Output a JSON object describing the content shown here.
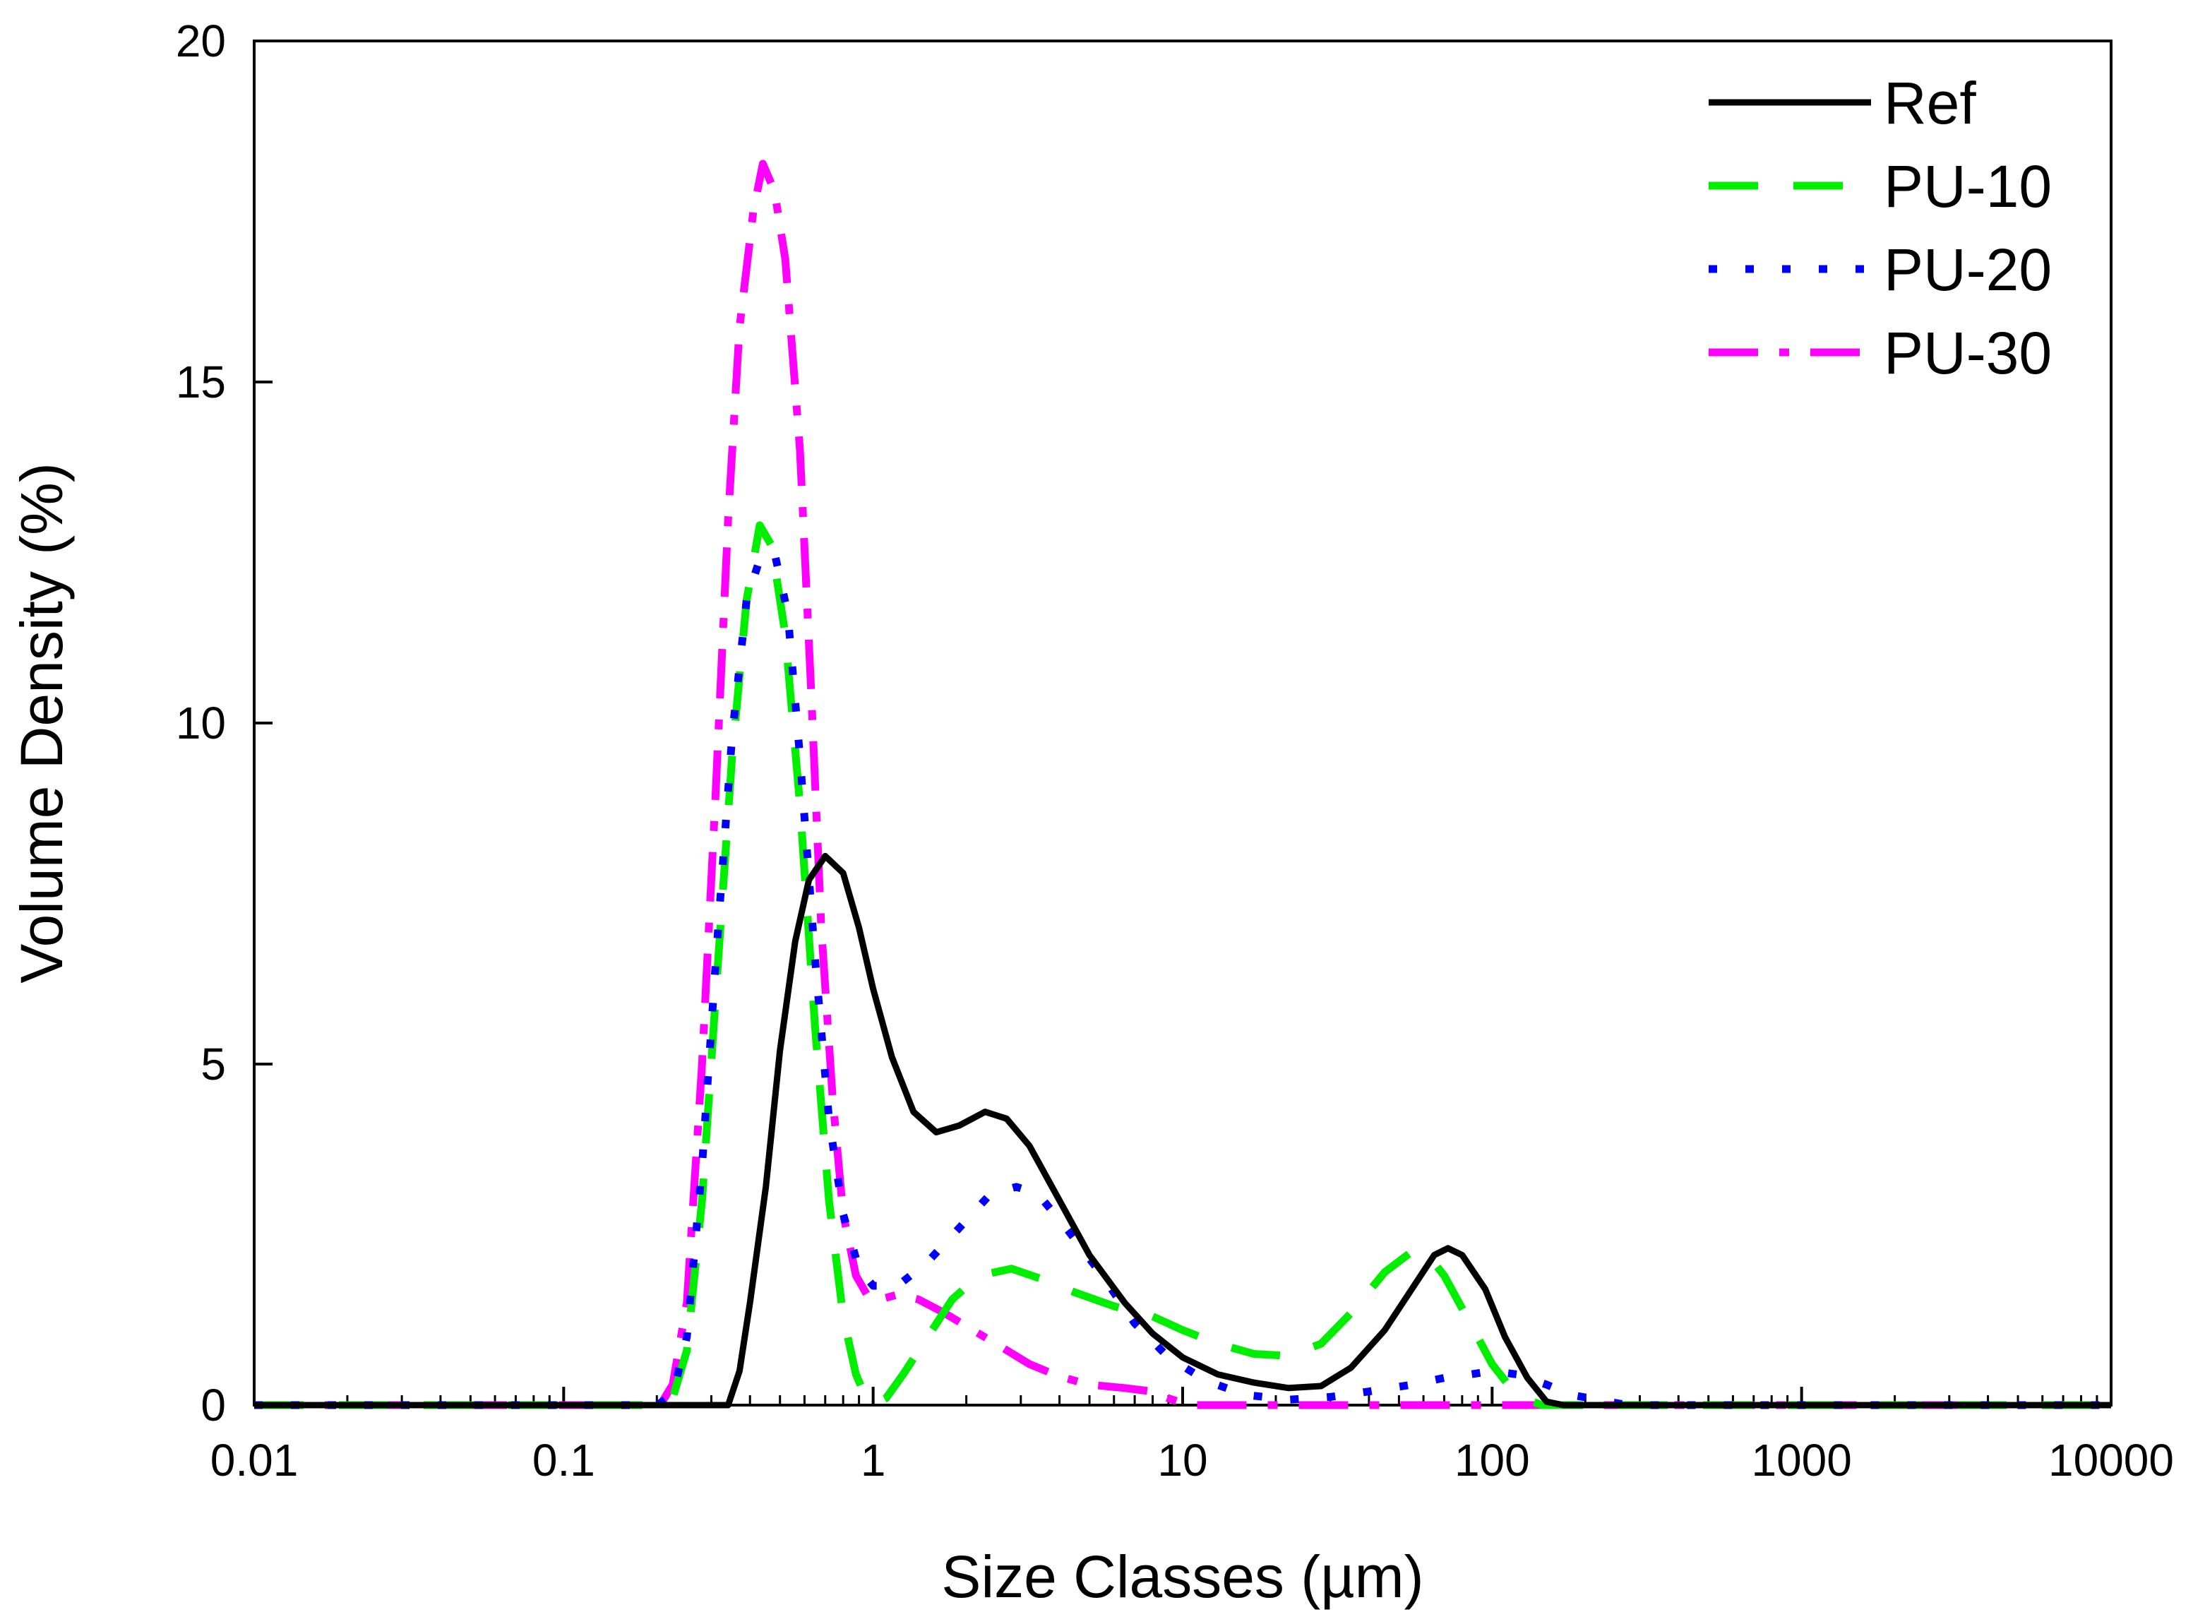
{
  "chart_data": {
    "type": "line",
    "title": "",
    "xlabel": "Size Classes (µm)",
    "ylabel": "Volume Density (%)",
    "xscale": "log",
    "xlim": [
      0.01,
      10000
    ],
    "ylim": [
      0,
      20
    ],
    "x_ticks": [
      {
        "value": 0.01,
        "label": "0.01"
      },
      {
        "value": 0.1,
        "label": "0.1"
      },
      {
        "value": 1,
        "label": "1"
      },
      {
        "value": 10,
        "label": "10"
      },
      {
        "value": 100,
        "label": "100"
      },
      {
        "value": 1000,
        "label": "1000"
      },
      {
        "value": 10000,
        "label": "10000"
      }
    ],
    "y_ticks": [
      {
        "value": 0,
        "label": "0"
      },
      {
        "value": 5,
        "label": "5"
      },
      {
        "value": 10,
        "label": "10"
      },
      {
        "value": 15,
        "label": "15"
      },
      {
        "value": 20,
        "label": "20"
      }
    ],
    "legend_position": "top-right",
    "series": [
      {
        "name": "Ref",
        "color": "#000000",
        "style": "solid",
        "points": [
          [
            0.01,
            0
          ],
          [
            0.2,
            0
          ],
          [
            0.34,
            0
          ],
          [
            0.37,
            0.5
          ],
          [
            0.4,
            1.5
          ],
          [
            0.45,
            3.2
          ],
          [
            0.5,
            5.2
          ],
          [
            0.56,
            6.8
          ],
          [
            0.62,
            7.7
          ],
          [
            0.7,
            8.05
          ],
          [
            0.8,
            7.8
          ],
          [
            0.9,
            7.0
          ],
          [
            1.0,
            6.1
          ],
          [
            1.15,
            5.1
          ],
          [
            1.35,
            4.3
          ],
          [
            1.6,
            4.0
          ],
          [
            1.9,
            4.1
          ],
          [
            2.3,
            4.3
          ],
          [
            2.7,
            4.2
          ],
          [
            3.2,
            3.8
          ],
          [
            4.0,
            3.0
          ],
          [
            5.0,
            2.2
          ],
          [
            6.5,
            1.5
          ],
          [
            8.0,
            1.05
          ],
          [
            10,
            0.7
          ],
          [
            13,
            0.45
          ],
          [
            17,
            0.33
          ],
          [
            22,
            0.25
          ],
          [
            28,
            0.28
          ],
          [
            35,
            0.55
          ],
          [
            45,
            1.1
          ],
          [
            55,
            1.7
          ],
          [
            65,
            2.2
          ],
          [
            72,
            2.3
          ],
          [
            80,
            2.2
          ],
          [
            95,
            1.7
          ],
          [
            110,
            1.0
          ],
          [
            130,
            0.4
          ],
          [
            150,
            0.05
          ],
          [
            170,
            0
          ],
          [
            10000,
            0
          ]
        ]
      },
      {
        "name": "PU-10",
        "color": "#00ee00",
        "style": "dashed",
        "points": [
          [
            0.01,
            0
          ],
          [
            0.2,
            0
          ],
          [
            0.225,
            0.1
          ],
          [
            0.25,
            0.8
          ],
          [
            0.28,
            3.0
          ],
          [
            0.31,
            6.0
          ],
          [
            0.35,
            9.5
          ],
          [
            0.39,
            11.8
          ],
          [
            0.43,
            12.9
          ],
          [
            0.47,
            12.6
          ],
          [
            0.52,
            11.3
          ],
          [
            0.58,
            8.8
          ],
          [
            0.65,
            5.5
          ],
          [
            0.72,
            3.0
          ],
          [
            0.8,
            1.3
          ],
          [
            0.88,
            0.45
          ],
          [
            0.95,
            0.1
          ],
          [
            1.02,
            0.02
          ],
          [
            1.1,
            0.1
          ],
          [
            1.25,
            0.45
          ],
          [
            1.5,
            1.0
          ],
          [
            1.8,
            1.55
          ],
          [
            2.2,
            1.9
          ],
          [
            2.8,
            2.0
          ],
          [
            3.5,
            1.85
          ],
          [
            4.5,
            1.65
          ],
          [
            6,
            1.45
          ],
          [
            8,
            1.3
          ],
          [
            10,
            1.1
          ],
          [
            13,
            0.9
          ],
          [
            17,
            0.75
          ],
          [
            22,
            0.72
          ],
          [
            28,
            0.9
          ],
          [
            35,
            1.35
          ],
          [
            45,
            1.95
          ],
          [
            55,
            2.25
          ],
          [
            62,
            2.2
          ],
          [
            70,
            1.9
          ],
          [
            85,
            1.2
          ],
          [
            100,
            0.6
          ],
          [
            115,
            0.25
          ],
          [
            130,
            0.08
          ],
          [
            145,
            0
          ],
          [
            10000,
            0
          ]
        ]
      },
      {
        "name": "PU-20",
        "color": "#0000ff",
        "style": "dotted",
        "points": [
          [
            0.01,
            0
          ],
          [
            0.2,
            0
          ],
          [
            0.225,
            0.15
          ],
          [
            0.25,
            1.0
          ],
          [
            0.28,
            3.5
          ],
          [
            0.31,
            6.5
          ],
          [
            0.35,
            9.8
          ],
          [
            0.39,
            11.8
          ],
          [
            0.43,
            12.4
          ],
          [
            0.48,
            12.5
          ],
          [
            0.53,
            11.6
          ],
          [
            0.58,
            9.5
          ],
          [
            0.65,
            6.5
          ],
          [
            0.72,
            4.2
          ],
          [
            0.8,
            2.8
          ],
          [
            0.9,
            2.0
          ],
          [
            1.0,
            1.75
          ],
          [
            1.2,
            1.75
          ],
          [
            1.5,
            2.1
          ],
          [
            1.9,
            2.6
          ],
          [
            2.4,
            3.1
          ],
          [
            2.9,
            3.2
          ],
          [
            3.4,
            3.1
          ],
          [
            4.2,
            2.6
          ],
          [
            5.5,
            1.9
          ],
          [
            7,
            1.2
          ],
          [
            9,
            0.7
          ],
          [
            12,
            0.35
          ],
          [
            16,
            0.15
          ],
          [
            22,
            0.08
          ],
          [
            30,
            0.12
          ],
          [
            40,
            0.2
          ],
          [
            55,
            0.3
          ],
          [
            70,
            0.4
          ],
          [
            85,
            0.45
          ],
          [
            100,
            0.5
          ],
          [
            120,
            0.45
          ],
          [
            150,
            0.3
          ],
          [
            180,
            0.15
          ],
          [
            220,
            0.08
          ],
          [
            260,
            0.02
          ],
          [
            300,
            0
          ],
          [
            10000,
            0
          ]
        ]
      },
      {
        "name": "PU-30",
        "color": "#ff00ff",
        "style": "dashdot",
        "points": [
          [
            0.01,
            0
          ],
          [
            0.205,
            0
          ],
          [
            0.225,
            0.3
          ],
          [
            0.25,
            1.5
          ],
          [
            0.28,
            5.0
          ],
          [
            0.31,
            9.0
          ],
          [
            0.34,
            13.0
          ],
          [
            0.37,
            15.8
          ],
          [
            0.41,
            17.5
          ],
          [
            0.44,
            18.2
          ],
          [
            0.48,
            17.8
          ],
          [
            0.52,
            16.8
          ],
          [
            0.58,
            14.0
          ],
          [
            0.63,
            10.5
          ],
          [
            0.68,
            7.0
          ],
          [
            0.74,
            4.5
          ],
          [
            0.8,
            2.8
          ],
          [
            0.88,
            1.9
          ],
          [
            0.96,
            1.6
          ],
          [
            1.05,
            1.55
          ],
          [
            1.2,
            1.62
          ],
          [
            1.4,
            1.55
          ],
          [
            1.7,
            1.35
          ],
          [
            2.1,
            1.1
          ],
          [
            2.6,
            0.85
          ],
          [
            3.2,
            0.6
          ],
          [
            4.0,
            0.42
          ],
          [
            5.0,
            0.3
          ],
          [
            6.5,
            0.25
          ],
          [
            8,
            0.2
          ],
          [
            9,
            0.1
          ],
          [
            10,
            0.03
          ],
          [
            11,
            0
          ],
          [
            3400,
            0
          ]
        ]
      }
    ]
  }
}
